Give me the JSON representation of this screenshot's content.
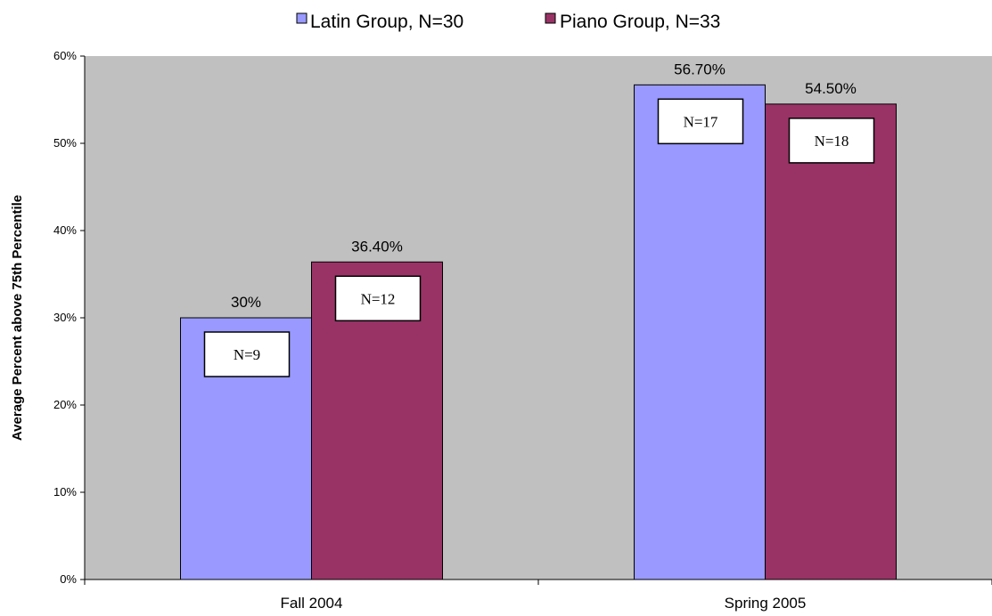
{
  "chart_data": {
    "type": "bar",
    "categories": [
      "Fall 2004",
      "Spring 2005"
    ],
    "series": [
      {
        "name": "Latin Group, N=30",
        "values": [
          30,
          56.7
        ],
        "value_labels": [
          "30%",
          "56.70%"
        ],
        "n_labels": [
          "N=9",
          "N=17"
        ],
        "color": "#9999ff"
      },
      {
        "name": "Piano Group, N=33",
        "values": [
          36.4,
          54.5
        ],
        "value_labels": [
          "36.40%",
          "54.50%"
        ],
        "n_labels": [
          "N=12",
          "N=18"
        ],
        "color": "#993366"
      }
    ],
    "ylabel": "Average Percent above 75th Percentile",
    "xlabel": "",
    "ylim": [
      0,
      60
    ],
    "yticks": [
      0,
      10,
      20,
      30,
      40,
      50,
      60
    ],
    "ytick_labels": [
      "0%",
      "10%",
      "20%",
      "30%",
      "40%",
      "50%",
      "60%"
    ],
    "legend_position": "top-center",
    "grid": false,
    "plot_background": "#c0c0c0"
  }
}
